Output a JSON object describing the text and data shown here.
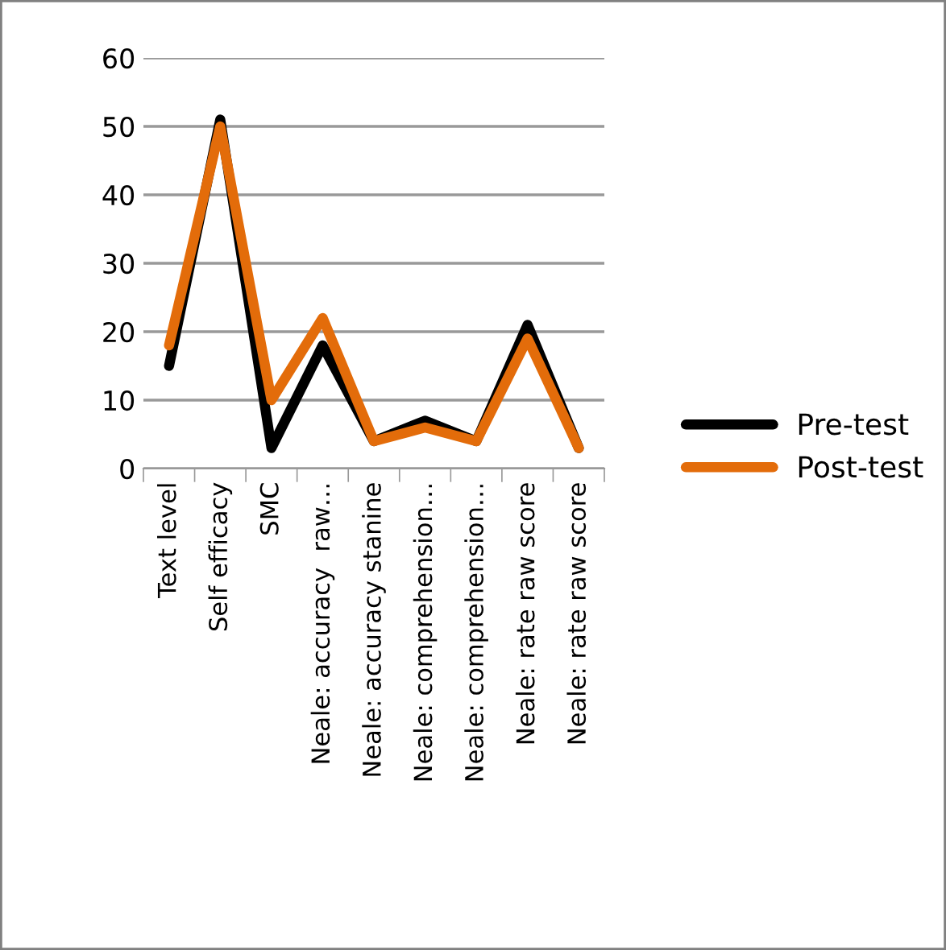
{
  "chart_data": {
    "type": "line",
    "categories": [
      "Text level",
      "Self efficacy",
      "SMC",
      "Neale: accuracy  raw…",
      "Neale: accuracy stanine",
      "Neale: comprehension…",
      "Neale: comprehension…",
      "Neale: rate raw score",
      "Neale: rate raw score"
    ],
    "series": [
      {
        "name": "Pre-test",
        "color": "#000000",
        "values": [
          15,
          51,
          3,
          18,
          4,
          7,
          4,
          21,
          3
        ]
      },
      {
        "name": "Post-test",
        "color": "#e36c0a",
        "values": [
          18,
          50,
          10,
          22,
          4,
          6,
          4,
          19,
          3
        ]
      }
    ],
    "ylim": [
      0,
      60
    ],
    "yticks": [
      0,
      10,
      20,
      30,
      40,
      50,
      60
    ],
    "grid": "y",
    "legend": "right",
    "marker": "none",
    "line_style": "solid"
  }
}
